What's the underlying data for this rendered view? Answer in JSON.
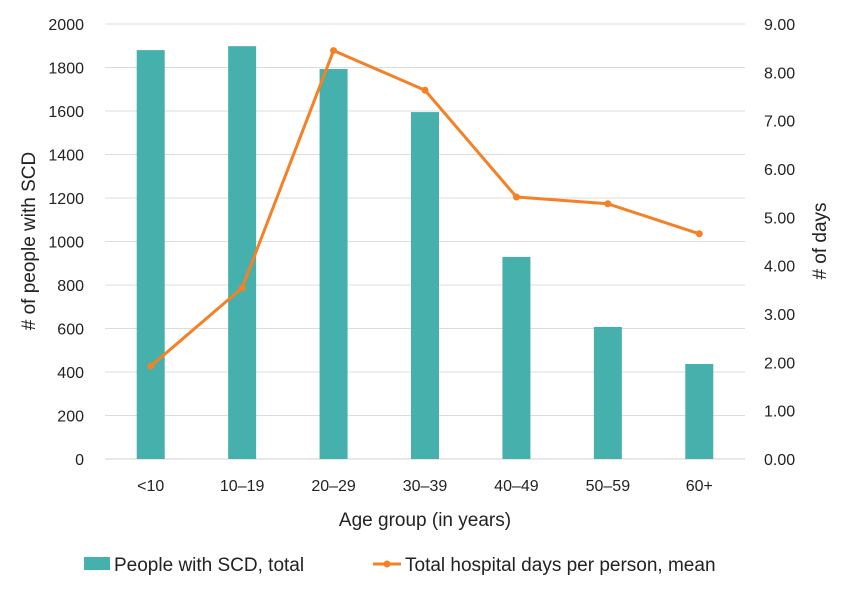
{
  "chart_data": {
    "type": "bar+line",
    "categories": [
      "<10",
      "10–19",
      "20–29",
      "30–39",
      "40–49",
      "50–59",
      "60+"
    ],
    "series": [
      {
        "name": "People with SCD, total",
        "type": "bar",
        "axis": "left",
        "color": "#45b0ac",
        "values": [
          1880,
          1898,
          1793,
          1595,
          929,
          607,
          437
        ]
      },
      {
        "name": "Total hospital days per person, mean",
        "type": "line",
        "axis": "right",
        "color": "#f58025",
        "values": [
          1.92,
          3.54,
          8.45,
          7.63,
          5.42,
          5.28,
          4.66
        ]
      }
    ],
    "xlabel": "Age group (in years)",
    "ylabel": "# of people with SCD",
    "y2label": "# of days",
    "ylim": [
      0,
      2000
    ],
    "y2lim": [
      0,
      9
    ],
    "yticks": [
      "0",
      "200",
      "400",
      "600",
      "800",
      "1000",
      "1200",
      "1400",
      "1600",
      "1800",
      "2000"
    ],
    "y2ticks": [
      "0.00",
      "1.00",
      "2.00",
      "3.00",
      "4.00",
      "5.00",
      "6.00",
      "7.00",
      "8.00",
      "9.00"
    ],
    "grid": true,
    "legend": "bottom"
  }
}
